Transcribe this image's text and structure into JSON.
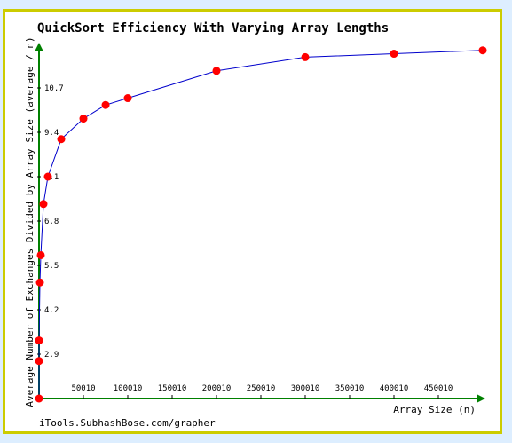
{
  "chart_data": {
    "type": "line",
    "title": "QuickSort Efficiency With Varying Array Lengths",
    "xlabel": "Array Size (n)",
    "ylabel": "Average Number of Exchanges Divided by Array Size (average / n)",
    "credit": "iTools.SubhashBose.com/grapher",
    "x_ticks": [
      50010,
      100010,
      150010,
      200010,
      250010,
      300010,
      350010,
      400010,
      450010
    ],
    "x_tick_labels": [
      "50010",
      "100010",
      "150010",
      "200010",
      "250010",
      "300010",
      "350010",
      "400010",
      "450010"
    ],
    "y_ticks": [
      2.9,
      4.2,
      5.5,
      6.8,
      8.1,
      9.4,
      10.7
    ],
    "y_tick_labels": [
      "2.9",
      "4.2",
      "5.5",
      "6.8",
      "8.1",
      "9.4",
      "10.7"
    ],
    "xlim": [
      0,
      500010
    ],
    "ylim": [
      1.6,
      12.0
    ],
    "grid": false,
    "series": [
      {
        "color": "#0000cc",
        "marker_color": "#ff0000",
        "x": [
          10,
          10,
          10,
          1010,
          2010,
          5010,
          10010,
          25010,
          50010,
          75010,
          100010,
          200010,
          300010,
          400010,
          500010
        ],
        "y": [
          1.6,
          2.7,
          3.3,
          5.0,
          5.8,
          7.3,
          8.1,
          9.2,
          9.8,
          10.2,
          10.4,
          11.2,
          11.6,
          11.7,
          11.8
        ]
      }
    ],
    "axis_color": "#008000",
    "frame_color": "#cccc00"
  }
}
